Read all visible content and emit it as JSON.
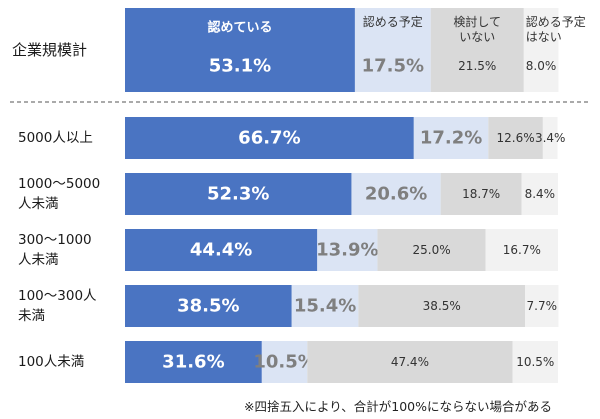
{
  "chart_data": {
    "type": "bar",
    "orientation": "horizontal",
    "stacked": true,
    "normalized": true,
    "xlim": [
      0,
      100
    ],
    "unit": "%",
    "series": [
      {
        "name": "認めている",
        "color": "#4a74c2",
        "label_color": "#ffffff",
        "values": [
          53.1,
          66.7,
          52.3,
          44.4,
          38.5,
          31.6
        ]
      },
      {
        "name": "認める予定",
        "color": "#dbe4f4",
        "label_color": "#7f7f7f",
        "values": [
          17.5,
          17.2,
          20.6,
          13.9,
          15.4,
          10.5
        ]
      },
      {
        "name": "検討していない",
        "color": "#d9d9d9",
        "label_color": "#333333",
        "values": [
          21.5,
          12.6,
          18.7,
          25.0,
          38.5,
          47.4
        ]
      },
      {
        "name": "認める予定はない",
        "color": "#f2f2f2",
        "label_color": "#333333",
        "values": [
          8.0,
          3.4,
          8.4,
          16.7,
          7.7,
          10.5
        ]
      }
    ],
    "header_labels": [
      [
        "認めている"
      ],
      [
        "認める予定"
      ],
      [
        "検討して",
        "いない"
      ],
      [
        "認める予定",
        "はない"
      ]
    ],
    "rows": [
      {
        "label": [
          "企業規模計"
        ]
      },
      {
        "label": [
          "5000人以上"
        ]
      },
      {
        "label": [
          "1000～5000",
          "人未満"
        ]
      },
      {
        "label": [
          "300～1000",
          "人未満"
        ]
      },
      {
        "label": [
          "100～300人",
          "未満"
        ]
      },
      {
        "label": [
          "100人未満"
        ]
      }
    ],
    "note": "※四捨五入により、合計が100%にならない場合がある"
  }
}
